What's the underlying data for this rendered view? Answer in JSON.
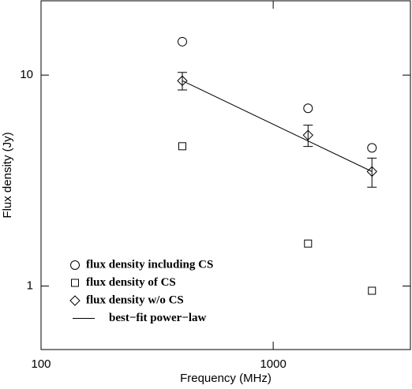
{
  "chart_data": {
    "type": "scatter",
    "x_label": "Frequency (MHz)",
    "y_label": "Flux density (Jy)",
    "x_log": true,
    "y_log": true,
    "xlim": [
      100,
      3900
    ],
    "ylim": [
      0.5,
      22.5
    ],
    "xticks": [
      100,
      1000
    ],
    "yticks": [
      1,
      10
    ],
    "legend": "lower left",
    "series": [
      {
        "name": "flux density including CS",
        "marker": "circle",
        "color": "#000000",
        "x": [
          406,
          1413,
          2663
        ],
        "values": [
          14.4,
          6.96,
          4.52
        ]
      },
      {
        "name": "flux density of CS",
        "marker": "square",
        "color": "#000000",
        "x": [
          406,
          1413,
          2663
        ],
        "values": [
          4.6,
          1.59,
          0.95
        ]
      },
      {
        "name": "flux density w/o CS",
        "marker": "diamond",
        "color": "#000000",
        "x": [
          406,
          1413,
          2663
        ],
        "values": [
          9.4,
          5.19,
          3.49
        ],
        "errors": [
          0.9,
          0.6,
          0.55
        ]
      },
      {
        "name": "best−fit power−law",
        "marker": "line",
        "color": "#000000",
        "x": [
          406,
          2663
        ],
        "values": [
          9.4,
          3.49
        ]
      }
    ]
  }
}
